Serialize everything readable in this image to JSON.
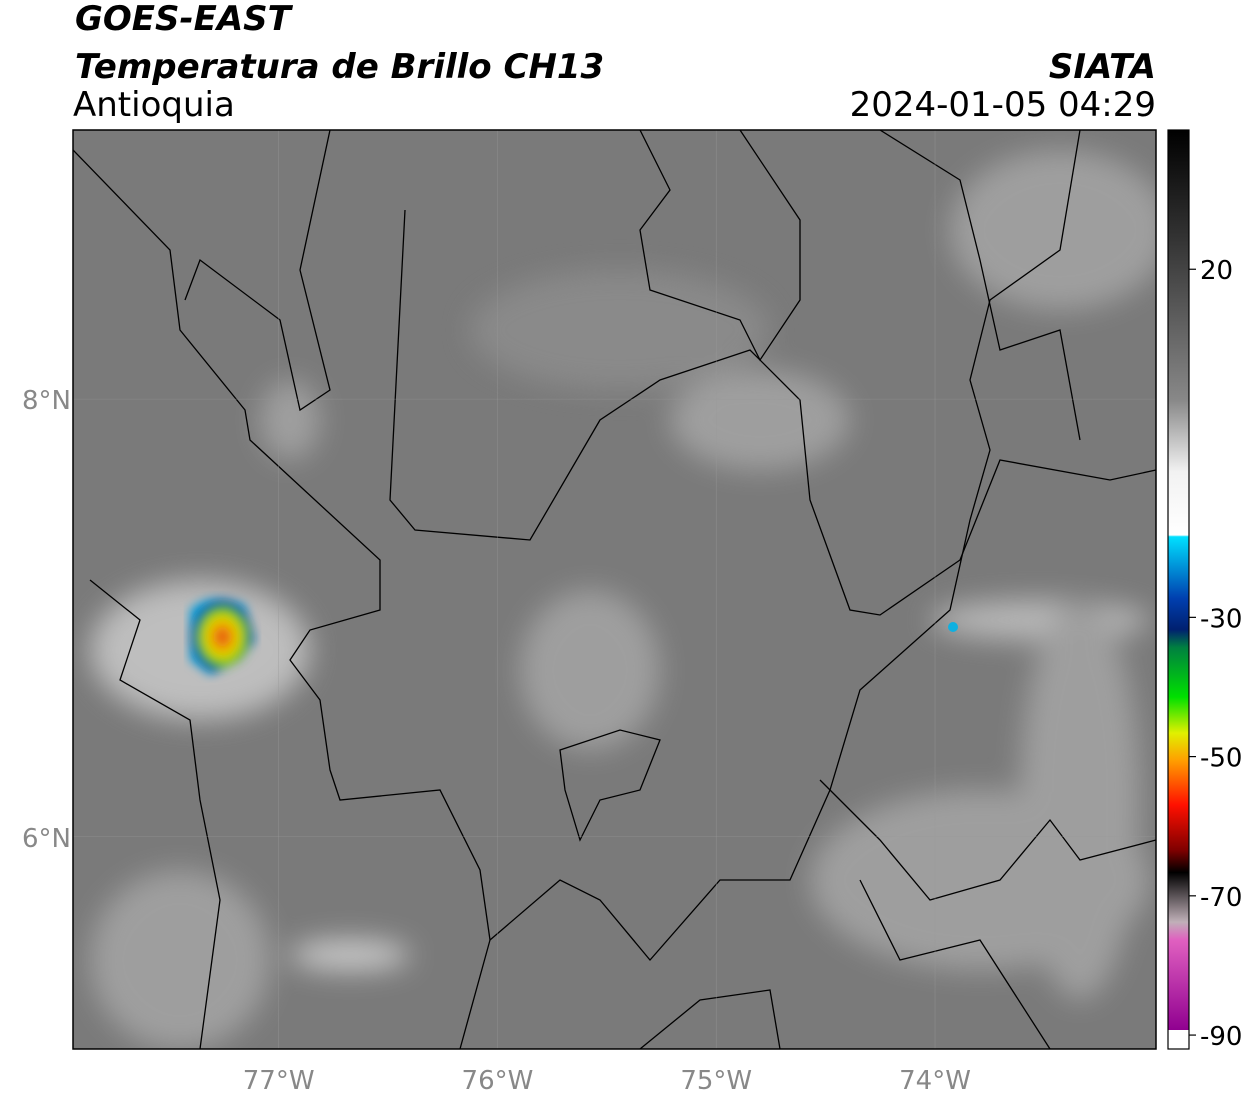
{
  "header": {
    "title": "GOES-EAST",
    "subtitle": "Temperatura de Brillo CH13",
    "region": "Antioquia",
    "source": "SIATA",
    "datetime": "2024-01-05 04:29"
  },
  "map": {
    "xlim": [
      -77.94,
      -72.99
    ],
    "ylim": [
      5.03,
      9.23
    ],
    "xticks": [
      {
        "value": -77,
        "label": "77°W"
      },
      {
        "value": -76,
        "label": "76°W"
      },
      {
        "value": -75,
        "label": "75°W"
      },
      {
        "value": -74,
        "label": "74°W"
      }
    ],
    "yticks": [
      {
        "value": 8,
        "label": "8°N"
      },
      {
        "value": 6,
        "label": "6°N"
      }
    ]
  },
  "colorbar": {
    "lim": [
      -92,
      40
    ],
    "ticks": [
      20,
      -30,
      -50,
      -70,
      -90
    ]
  }
}
